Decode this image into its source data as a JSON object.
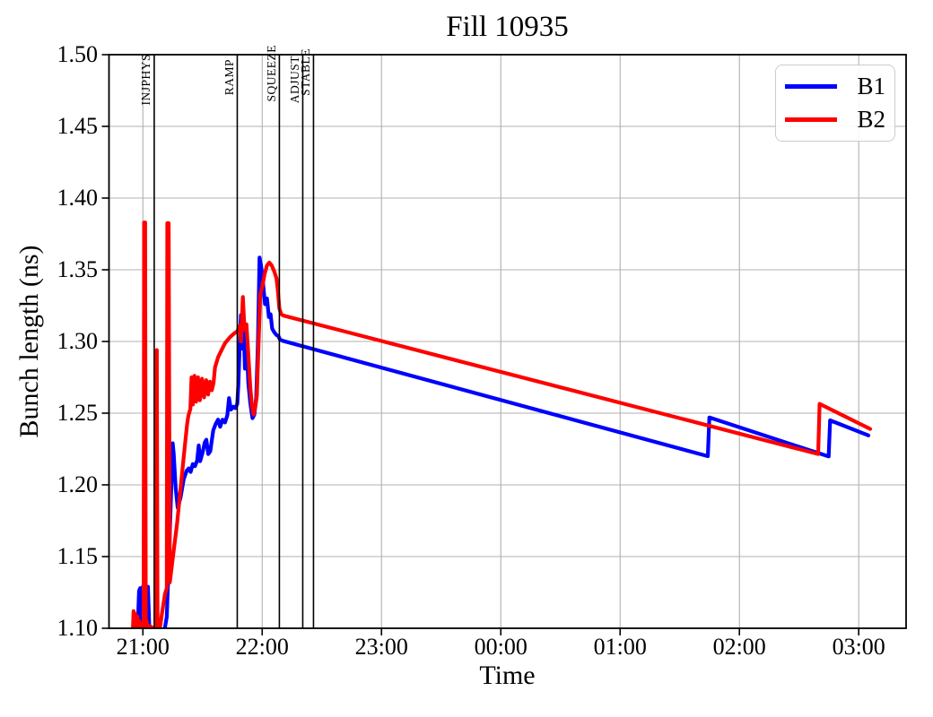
{
  "chart_data": {
    "type": "line",
    "title": "Fill 10935",
    "xlabel": "Time",
    "ylabel": "Bunch length (ns)",
    "xlim_hours": [
      -0.284,
      6.397
    ],
    "ylim": [
      1.1,
      1.5
    ],
    "grid": true,
    "colors": {
      "grid": "#b0b0b0",
      "axis": "#000000",
      "mode_line": "#000000",
      "b1": "#0000ff",
      "b2": "#ff0000",
      "legend_border": "#cccccc"
    },
    "x_ticks": [
      {
        "t": 0,
        "label": "21:00"
      },
      {
        "t": 1,
        "label": "22:00"
      },
      {
        "t": 2,
        "label": "23:00"
      },
      {
        "t": 3,
        "label": "00:00"
      },
      {
        "t": 4,
        "label": "01:00"
      },
      {
        "t": 5,
        "label": "02:00"
      },
      {
        "t": 6,
        "label": "03:00"
      }
    ],
    "y_ticks": [
      {
        "v": 1.1,
        "label": "1.10"
      },
      {
        "v": 1.15,
        "label": "1.15"
      },
      {
        "v": 1.2,
        "label": "1.20"
      },
      {
        "v": 1.25,
        "label": "1.25"
      },
      {
        "v": 1.3,
        "label": "1.30"
      },
      {
        "v": 1.35,
        "label": "1.35"
      },
      {
        "v": 1.4,
        "label": "1.40"
      },
      {
        "v": 1.45,
        "label": "1.45"
      },
      {
        "v": 1.5,
        "label": "1.50"
      }
    ],
    "mode_lines": [
      {
        "label": "INJPHYS",
        "t": 0.095
      },
      {
        "label": "RAMP",
        "t": 0.791
      },
      {
        "label": "SQUEEZE",
        "t": 1.144
      },
      {
        "label": "ADJUST",
        "t": 1.34
      },
      {
        "label": "STABLE",
        "t": 1.43
      }
    ],
    "legend": {
      "position": "upper right",
      "entries": [
        {
          "label": "B1",
          "color": "#0000ff"
        },
        {
          "label": "B2",
          "color": "#ff0000"
        }
      ]
    },
    "series": [
      {
        "name": "B1",
        "color": "#0000ff",
        "points": [
          [
            -0.065,
            1.097
          ],
          [
            -0.045,
            1.097
          ],
          [
            -0.032,
            1.126
          ],
          [
            -0.022,
            1.128
          ],
          [
            -0.014,
            1.102
          ],
          [
            -0.006,
            1.126
          ],
          [
            0.004,
            1.13
          ],
          [
            0.014,
            1.099
          ],
          [
            0.028,
            1.125
          ],
          [
            0.042,
            1.129
          ],
          [
            0.054,
            1.099
          ],
          [
            0.08,
            1.097
          ],
          [
            0.13,
            1.097
          ],
          [
            0.18,
            1.098
          ],
          [
            0.2,
            1.108
          ],
          [
            0.225,
            1.165
          ],
          [
            0.25,
            1.229
          ],
          [
            0.258,
            1.222
          ],
          [
            0.275,
            1.198
          ],
          [
            0.292,
            1.184
          ],
          [
            0.315,
            1.191
          ],
          [
            0.342,
            1.204
          ],
          [
            0.368,
            1.21
          ],
          [
            0.385,
            1.2115
          ],
          [
            0.4,
            1.209
          ],
          [
            0.418,
            1.2145
          ],
          [
            0.436,
            1.213
          ],
          [
            0.455,
            1.217
          ],
          [
            0.468,
            1.2275
          ],
          [
            0.48,
            1.2165
          ],
          [
            0.5,
            1.2225
          ],
          [
            0.518,
            1.2295
          ],
          [
            0.532,
            1.2315
          ],
          [
            0.548,
            1.2215
          ],
          [
            0.565,
            1.2235
          ],
          [
            0.59,
            1.238
          ],
          [
            0.61,
            1.2425
          ],
          [
            0.63,
            1.2455
          ],
          [
            0.648,
            1.2405
          ],
          [
            0.668,
            1.2455
          ],
          [
            0.688,
            1.2435
          ],
          [
            0.708,
            1.2485
          ],
          [
            0.722,
            1.2605
          ],
          [
            0.738,
            1.2525
          ],
          [
            0.758,
            1.2545
          ],
          [
            0.775,
            1.2535
          ],
          [
            0.791,
            1.2565
          ],
          [
            0.8,
            1.27
          ],
          [
            0.812,
            1.3
          ],
          [
            0.822,
            1.3185
          ],
          [
            0.832,
            1.295
          ],
          [
            0.843,
            1.3145
          ],
          [
            0.855,
            1.281
          ],
          [
            0.868,
            1.302
          ],
          [
            0.884,
            1.271
          ],
          [
            0.9,
            1.257
          ],
          [
            0.918,
            1.2465
          ],
          [
            0.934,
            1.249
          ],
          [
            0.95,
            1.261
          ],
          [
            0.964,
            1.299
          ],
          [
            0.978,
            1.3585
          ],
          [
            0.992,
            1.352
          ],
          [
            1.008,
            1.34
          ],
          [
            1.024,
            1.326
          ],
          [
            1.04,
            1.33
          ],
          [
            1.056,
            1.317
          ],
          [
            1.07,
            1.319
          ],
          [
            1.084,
            1.309
          ],
          [
            1.1,
            1.3065
          ],
          [
            1.12,
            1.3045
          ],
          [
            1.138,
            1.3035
          ],
          [
            1.148,
            1.3015
          ],
          [
            1.17,
            1.3005
          ],
          [
            4.735,
            1.22
          ],
          [
            4.748,
            1.247
          ],
          [
            5.748,
            1.2198
          ],
          [
            5.76,
            1.245
          ],
          [
            6.081,
            1.2345
          ]
        ]
      },
      {
        "name": "B2",
        "color": "#ff0000",
        "points": [
          [
            -0.085,
            1.097
          ],
          [
            -0.078,
            1.112
          ],
          [
            -0.07,
            1.098
          ],
          [
            -0.062,
            1.11
          ],
          [
            -0.054,
            1.097
          ],
          [
            -0.046,
            1.108
          ],
          [
            -0.038,
            1.097
          ],
          [
            -0.03,
            1.105
          ],
          [
            -0.022,
            1.097
          ],
          [
            -0.01,
            1.103
          ],
          [
            0.0,
            1.097
          ],
          [
            0.006,
            1.1
          ],
          [
            0.01,
            1.383
          ],
          [
            0.019,
            1.383
          ],
          [
            0.024,
            1.1
          ],
          [
            0.032,
            1.105
          ],
          [
            0.04,
            1.097
          ],
          [
            0.05,
            1.102
          ],
          [
            0.06,
            1.097
          ],
          [
            0.072,
            1.101
          ],
          [
            0.085,
            1.097
          ],
          [
            0.095,
            1.1
          ],
          [
            0.105,
            1.097
          ],
          [
            0.112,
            1.1
          ],
          [
            0.117,
            1.294
          ],
          [
            0.123,
            1.1
          ],
          [
            0.132,
            1.097
          ],
          [
            0.141,
            1.099
          ],
          [
            0.16,
            1.11
          ],
          [
            0.185,
            1.124
          ],
          [
            0.2,
            1.128
          ],
          [
            0.205,
            1.3825
          ],
          [
            0.216,
            1.3825
          ],
          [
            0.226,
            1.132
          ],
          [
            0.255,
            1.152
          ],
          [
            0.285,
            1.172
          ],
          [
            0.315,
            1.197
          ],
          [
            0.345,
            1.222
          ],
          [
            0.37,
            1.242
          ],
          [
            0.381,
            1.248
          ],
          [
            0.398,
            1.253
          ],
          [
            0.408,
            1.275
          ],
          [
            0.418,
            1.256
          ],
          [
            0.432,
            1.276
          ],
          [
            0.446,
            1.258
          ],
          [
            0.462,
            1.275
          ],
          [
            0.478,
            1.259
          ],
          [
            0.496,
            1.274
          ],
          [
            0.513,
            1.261
          ],
          [
            0.53,
            1.273
          ],
          [
            0.547,
            1.263
          ],
          [
            0.562,
            1.272
          ],
          [
            0.578,
            1.266
          ],
          [
            0.592,
            1.271
          ],
          [
            0.605,
            1.282
          ],
          [
            0.63,
            1.289
          ],
          [
            0.66,
            1.294
          ],
          [
            0.69,
            1.299
          ],
          [
            0.73,
            1.303
          ],
          [
            0.77,
            1.306
          ],
          [
            0.791,
            1.307
          ],
          [
            0.81,
            1.311
          ],
          [
            0.822,
            1.3
          ],
          [
            0.838,
            1.331
          ],
          [
            0.852,
            1.308
          ],
          [
            0.868,
            1.312
          ],
          [
            0.884,
            1.291
          ],
          [
            0.9,
            1.268
          ],
          [
            0.914,
            1.255
          ],
          [
            0.928,
            1.249
          ],
          [
            0.942,
            1.254
          ],
          [
            0.955,
            1.262
          ],
          [
            0.97,
            1.3
          ],
          [
            0.984,
            1.333
          ],
          [
            1.0,
            1.338
          ],
          [
            1.02,
            1.347
          ],
          [
            1.04,
            1.353
          ],
          [
            1.06,
            1.355
          ],
          [
            1.08,
            1.353
          ],
          [
            1.1,
            1.349
          ],
          [
            1.12,
            1.344
          ],
          [
            1.132,
            1.335
          ],
          [
            1.144,
            1.323
          ],
          [
            1.16,
            1.319
          ],
          [
            1.18,
            1.318
          ],
          [
            5.66,
            1.2215
          ],
          [
            5.672,
            1.2565
          ],
          [
            6.096,
            1.239
          ]
        ]
      }
    ]
  }
}
